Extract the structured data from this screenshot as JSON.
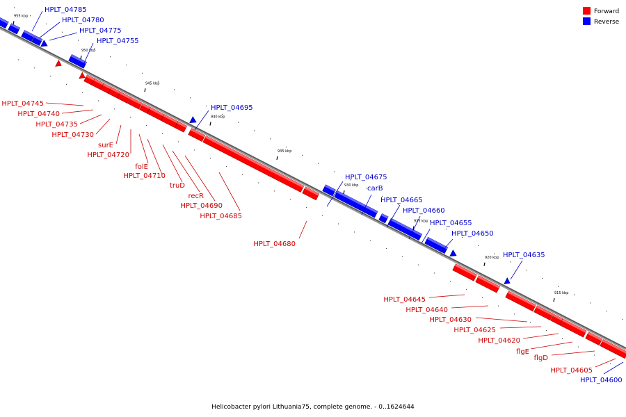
{
  "caption": "Helicobacter pylori Lithuania75, complete genome. - 0..1624644",
  "legend": [
    {
      "label": "Forward",
      "color": "#ff0000"
    },
    {
      "label": "Reverse",
      "color": "#0000ff"
    }
  ],
  "colors": {
    "forward": "#ff0000",
    "reverse": "#0000ff",
    "backbone": "#555555"
  },
  "kbp_ticks": [
    "955 kbp",
    "950 kbp",
    "945 kbp",
    "940 kbp",
    "935 kbp",
    "930 kbp",
    "925 kbp",
    "920 kbp",
    "915 kbp"
  ],
  "forward_genes": [
    "HPLT_04745",
    "HPLT_04740",
    "HPLT_04735",
    "HPLT_04730",
    "surE",
    "HPLT_04720",
    "folE",
    "HPLT_04710",
    "truD",
    "recR",
    "HPLT_04690",
    "HPLT_04685",
    "HPLT_04680",
    "HPLT_04645",
    "HPLT_04640",
    "HPLT_04630",
    "HPLT_04625",
    "HPLT_04620",
    "flgE",
    "flgD",
    "HPLT_04605"
  ],
  "reverse_genes": [
    "HPLT_04785",
    "HPLT_04780",
    "HPLT_04775",
    "HPLT_04755",
    "HPLT_04695",
    "HPLT_04675",
    "carB",
    "HPLT_04665",
    "HPLT_04660",
    "HPLT_04655",
    "HPLT_04650",
    "HPLT_04635",
    "HPLT_04600"
  ]
}
